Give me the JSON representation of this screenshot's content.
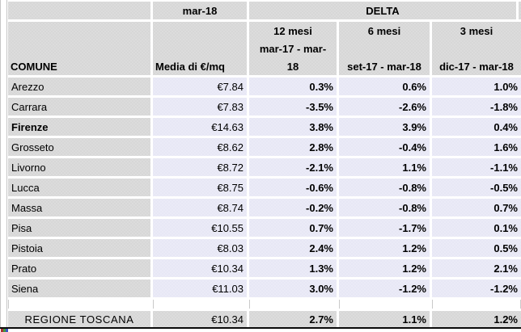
{
  "table": {
    "top_header": {
      "media_period": "mar-18",
      "delta": "DELTA"
    },
    "columns": {
      "comune_label": "COMUNE",
      "media_label": "Media di €/mq",
      "m12_line1": "12 mesi",
      "m12_line2": "mar-17 - mar-",
      "m12_line3": "18",
      "m6_line1": "6 mesi",
      "m6_line2": "set-17 - mar-18",
      "m3_line1": "3 mesi",
      "m3_line2": "dic-17 - mar-18"
    },
    "rows": [
      {
        "name": "Arezzo",
        "media": "€7.84",
        "m12": "0.3%",
        "m6": "0.6%",
        "m3": "1.0%"
      },
      {
        "name": "Carrara",
        "media": "€7.83",
        "m12": "-3.5%",
        "m6": "-2.6%",
        "m3": "-1.8%"
      },
      {
        "name": "Firenze",
        "media": "€14.63",
        "m12": "3.8%",
        "m6": "3.9%",
        "m3": "0.4%"
      },
      {
        "name": "Grosseto",
        "media": "€8.62",
        "m12": "2.8%",
        "m6": "-0.4%",
        "m3": "1.6%"
      },
      {
        "name": "Livorno",
        "media": "€8.72",
        "m12": "-2.1%",
        "m6": "1.1%",
        "m3": "-1.1%"
      },
      {
        "name": "Lucca",
        "media": "€8.75",
        "m12": "-0.6%",
        "m6": "-0.8%",
        "m3": "-0.5%"
      },
      {
        "name": "Massa",
        "media": "€8.74",
        "m12": "-0.2%",
        "m6": "-0.8%",
        "m3": "0.7%"
      },
      {
        "name": "Pisa",
        "media": "€10.55",
        "m12": "0.7%",
        "m6": "-1.7%",
        "m3": "0.1%"
      },
      {
        "name": "Pistoia",
        "media": "€8.03",
        "m12": "2.4%",
        "m6": "1.2%",
        "m3": "0.5%"
      },
      {
        "name": "Prato",
        "media": "€10.34",
        "m12": "1.3%",
        "m6": "1.2%",
        "m3": "2.1%"
      },
      {
        "name": "Siena",
        "media": "€11.03",
        "m12": "3.0%",
        "m6": "-1.2%",
        "m3": "-1.2%"
      }
    ],
    "total": {
      "name": "REGIONE TOSCANA",
      "media": "€10.34",
      "m12": "2.7%",
      "m6": "1.1%",
      "m3": "1.2%"
    }
  },
  "colors": {
    "header_fill": "#d7d7d7",
    "value_fill": "#e7e7f5",
    "gridline_white": "#ffffff",
    "hairline_grey": "#c9c9c9",
    "bottom_border": "#0a0a0a"
  }
}
